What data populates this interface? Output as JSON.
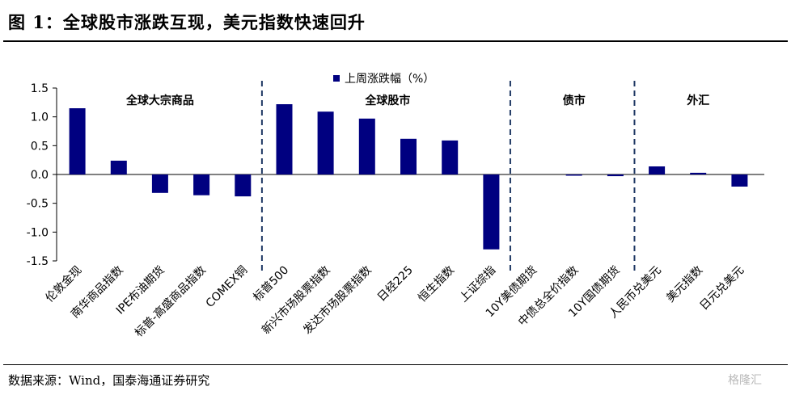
{
  "header": {
    "title": "图 1：全球股市涨跌互现，美元指数快速回升"
  },
  "footer": {
    "source": "数据来源：Wind，国泰海通证券研究",
    "watermark": "格隆汇"
  },
  "colors": {
    "bar": "#000080",
    "axis": "#000000",
    "divider": "#1f3864"
  },
  "chart_data": {
    "type": "bar",
    "categories": [
      "伦敦金现",
      "南华商品指数",
      "IPE布油期货",
      "标普-高盛商品指数",
      "COMEX铜",
      "标普500",
      "新兴市场股票指数",
      "发达市场股票指数",
      "日经225",
      "恒生指数",
      "上证综指",
      "10Y美债期货",
      "中债总全价指数",
      "10Y国债期货",
      "人民币兑美元",
      "美元指数",
      "日元兑美元"
    ],
    "series": [
      {
        "name": "上周涨跌幅（%）",
        "values": [
          1.15,
          0.24,
          -0.32,
          -0.36,
          -0.38,
          1.22,
          1.09,
          0.97,
          0.62,
          0.59,
          -1.3,
          0.0,
          -0.02,
          -0.03,
          0.14,
          0.03,
          -0.21
        ]
      }
    ],
    "ylim": [
      -1.5,
      1.5
    ],
    "yticks": [
      "1.5",
      "1.0",
      "0.5",
      "0.0",
      "-0.5",
      "-1.0",
      "-1.5"
    ],
    "sections": [
      {
        "label": "全球大宗商品"
      },
      {
        "label": "全球股市"
      },
      {
        "label": "债市"
      },
      {
        "label": "外汇"
      }
    ],
    "legend_position": "top-center",
    "grid": false
  }
}
